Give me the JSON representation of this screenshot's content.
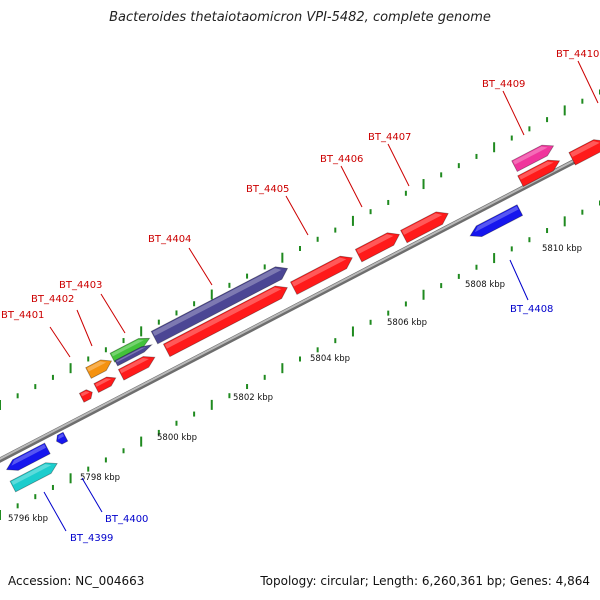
{
  "title": "Bacteroides thetaiotaomicron VPI-5482, complete genome",
  "footer": {
    "accession": "Accession: NC_004663",
    "topology": "Topology: circular; Length: 6,260,361 bp; Genes: 4,864"
  },
  "colors": {
    "red": "#ff1a1a",
    "purple": "#4b4694",
    "green": "#42c23a",
    "orange": "#f5920f",
    "magenta": "#f0359c",
    "blue": "#1616ee",
    "cyan": "#1ccdcd",
    "tick": "#1f8a1f",
    "label_red": "#cc0000",
    "label_blue": "#0000cc"
  },
  "scale": {
    "labels": [
      "5796 kbp",
      "5798 kbp",
      "5800 kbp",
      "5802 kbp",
      "5804 kbp",
      "5806 kbp",
      "5808 kbp",
      "5810 kbp"
    ]
  },
  "genes": [
    {
      "name": "BT_4399",
      "color": "cyan",
      "label_color": "label_blue"
    },
    {
      "name": "BT_4400",
      "color": "blue",
      "label_color": "label_blue"
    },
    {
      "name": "BT_4401",
      "color": "red",
      "label_color": "label_red"
    },
    {
      "name": "BT_4402",
      "color": "orange",
      "label_color": "label_red"
    },
    {
      "name": "BT_4403",
      "color": "green",
      "label_color": "label_red"
    },
    {
      "name": "BT_4404",
      "color": "purple",
      "label_color": "label_red"
    },
    {
      "name": "BT_4405",
      "color": "red",
      "label_color": "label_red"
    },
    {
      "name": "BT_4406",
      "color": "red",
      "label_color": "label_red"
    },
    {
      "name": "BT_4407",
      "color": "red",
      "label_color": "label_red"
    },
    {
      "name": "BT_4408",
      "color": "blue",
      "label_color": "label_blue"
    },
    {
      "name": "BT_4409",
      "color": "magenta",
      "label_color": "label_red"
    },
    {
      "name": "BT_4410",
      "color": "red",
      "label_color": "label_red"
    }
  ]
}
